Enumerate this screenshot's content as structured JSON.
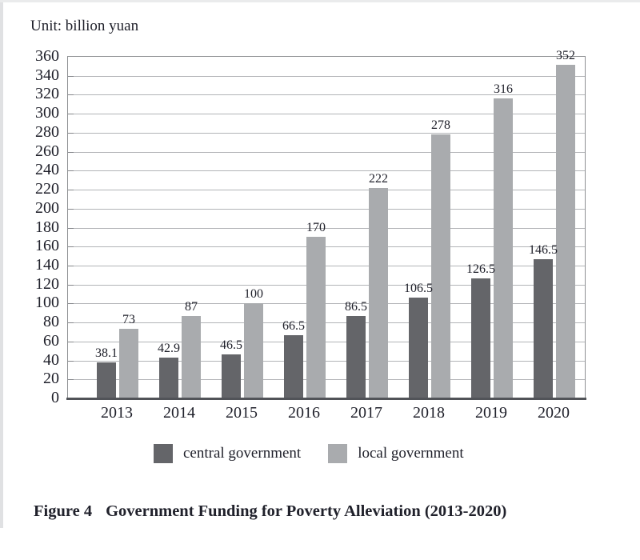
{
  "unit_label": "Unit: billion yuan",
  "colors": {
    "grid": "#b2b4b7",
    "box_border": "#8f9194",
    "axis_line": "#515358",
    "text": "#20212b",
    "central_bar": "#646569",
    "local_bar": "#a9abae"
  },
  "chart_data": {
    "type": "bar",
    "title": "Government Funding for Poverty Alleviation (2013-2020)",
    "unit": "billion yuan",
    "categories": [
      "2013",
      "2014",
      "2015",
      "2016",
      "2017",
      "2018",
      "2019",
      "2020"
    ],
    "series": [
      {
        "name": "central government",
        "color": "#646569",
        "values": [
          38.1,
          42.9,
          46.5,
          66.5,
          86.5,
          106.5,
          126.5,
          146.5
        ]
      },
      {
        "name": "local government",
        "color": "#a9abae",
        "values": [
          73,
          87,
          100,
          170,
          222,
          278,
          316,
          352
        ]
      }
    ],
    "ylim": [
      0,
      360
    ],
    "ytick_step": 20,
    "grid": true,
    "value_labels": true,
    "legend_position": "bottom"
  },
  "caption": {
    "label": "Figure 4",
    "title": "Government Funding for Poverty Alleviation (2013-2020)"
  }
}
